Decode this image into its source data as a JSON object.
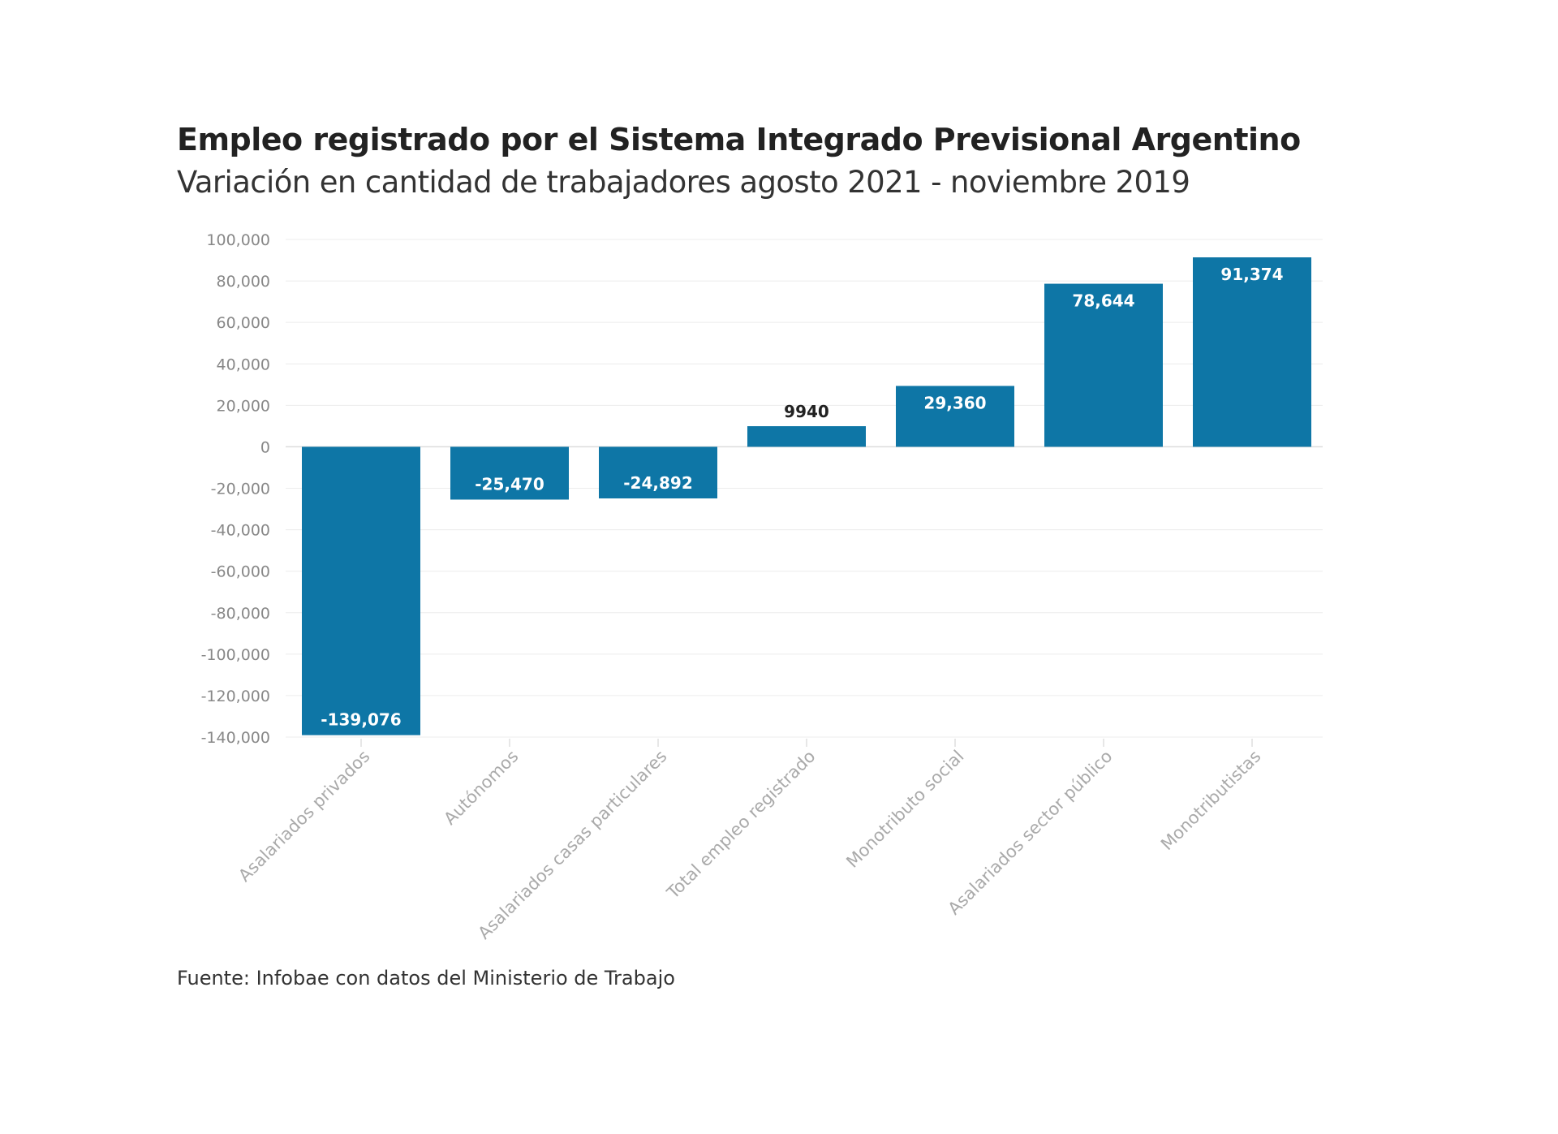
{
  "chart_data": {
    "type": "bar",
    "title": "Empleo registrado por el Sistema Integrado Previsional Argentino",
    "subtitle": "Variación en cantidad de trabajadores agosto 2021 - noviembre 2019",
    "categories": [
      "Asalariados privados",
      "Autónomos",
      "Asalariados casas particulares",
      "Total empleo registrado",
      "Monotributo social",
      "Asalariados sector público",
      "Monotributistas"
    ],
    "values": [
      -139076,
      -25470,
      -24892,
      9940,
      29360,
      78644,
      91374
    ],
    "data_labels": [
      "-139,076",
      "-25,470",
      "-24,892",
      "9940",
      "29,360",
      "78,644",
      "91,374"
    ],
    "ylim": [
      -140000,
      100000
    ],
    "yticks": [
      100000,
      80000,
      60000,
      40000,
      20000,
      0,
      -20000,
      -40000,
      -60000,
      -80000,
      -100000,
      -120000,
      -140000
    ],
    "ytick_labels": [
      "100,000",
      "80,000",
      "60,000",
      "40,000",
      "20,000",
      "0",
      "-20,000",
      "-40,000",
      "-60,000",
      "-80,000",
      "-100,000",
      "-120,000",
      "-140,000"
    ],
    "xlabel": "",
    "ylabel": "",
    "grid": true,
    "bar_color": "#0e76a6",
    "source": "Fuente: Infobae con datos del Ministerio de Trabajo"
  }
}
